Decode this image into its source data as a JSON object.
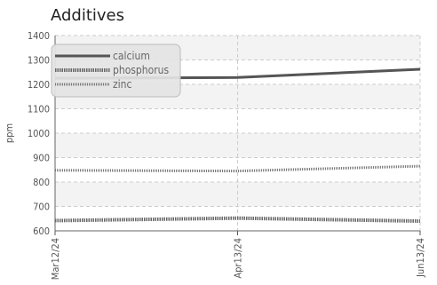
{
  "chart_data": {
    "type": "line",
    "title": "Additives",
    "xlabel": "",
    "ylabel": "ppm",
    "x": [
      "Mar12/24",
      "Apr13/24",
      "Jun13/24"
    ],
    "ylim": [
      600,
      1400
    ],
    "yticks": [
      600,
      700,
      800,
      900,
      1000,
      1100,
      1200,
      1300,
      1400
    ],
    "grid": true,
    "legend_position": "top-left",
    "series": [
      {
        "name": "calcium",
        "values": [
          1225,
          1228,
          1262
        ],
        "style": "solid",
        "color": "#555555"
      },
      {
        "name": "phosphorus",
        "values": [
          642,
          652,
          640
        ],
        "style": "dotted",
        "color": "#666666"
      },
      {
        "name": "zinc",
        "values": [
          848,
          845,
          865
        ],
        "style": "dotted-thin",
        "color": "#777777"
      }
    ]
  }
}
